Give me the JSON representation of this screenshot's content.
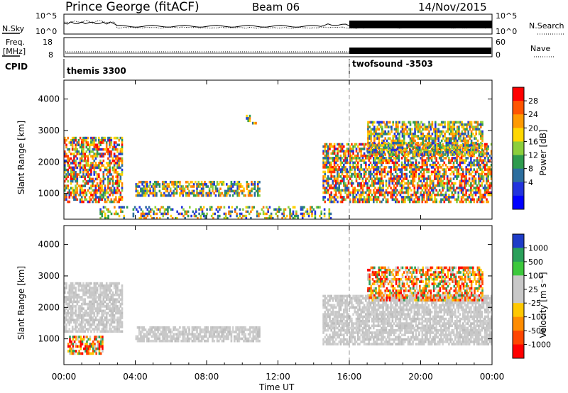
{
  "header": {
    "station": "Prince George (fitACF)",
    "beam": "Beam 06",
    "date": "14/Nov/2015"
  },
  "top_panels": {
    "nsky_label": "N.Sky",
    "nsky_ticks": [
      "10^5",
      "10^0"
    ],
    "nsearch_label": "N.Search",
    "nsearch_ticks": [
      "10^5",
      "10^0"
    ],
    "freq_label_1": "Freq.",
    "freq_label_2": "[MHz]",
    "freq_ticks": [
      "18",
      "8"
    ],
    "nave_label": "Nave",
    "nave_ticks": [
      "60",
      "0"
    ],
    "cpid_label": "CPID",
    "cpid_segments": [
      {
        "name": "themis 3300",
        "start_hour": 0,
        "end_hour": 16
      },
      {
        "name": "twofsound -3503",
        "start_hour": 16,
        "end_hour": 24
      }
    ]
  },
  "chart_data": [
    {
      "type": "heatmap",
      "panel": "power",
      "ylabel": "Slant Range [km]",
      "xlabel": "",
      "xlim": [
        0,
        24
      ],
      "ylim": [
        180,
        4600
      ],
      "yticks": [
        1000,
        2000,
        3000,
        4000
      ],
      "colorbar": {
        "label": "Power [dB]",
        "ticks": [
          "28",
          "24",
          "20",
          "16",
          "12",
          "8",
          "4"
        ],
        "colors": [
          "#ff0000",
          "#ff5500",
          "#ff9a00",
          "#ffd700",
          "#8ccf3c",
          "#2e9b4e",
          "#2c6e9e",
          "#2233dd",
          "#0000ff"
        ]
      },
      "features": [
        {
          "desc": "early echo band",
          "t_start": 0.0,
          "t_end": 3.3,
          "r_start": 700,
          "r_end": 2800,
          "level": "high"
        },
        {
          "desc": "midday band",
          "t_start": 4.0,
          "t_end": 11.0,
          "r_start": 900,
          "r_end": 1400,
          "level": "medium"
        },
        {
          "desc": "near-range ground scatter",
          "t_start": 2.0,
          "t_end": 15.0,
          "r_start": 180,
          "r_end": 600,
          "level": "low"
        },
        {
          "desc": "isolated patch",
          "t_start": 10.2,
          "t_end": 10.8,
          "r_start": 3200,
          "r_end": 3500,
          "level": "low"
        },
        {
          "desc": "evening band",
          "t_start": 14.5,
          "t_end": 24.0,
          "r_start": 700,
          "r_end": 2600,
          "level": "high"
        },
        {
          "desc": "upper band",
          "t_start": 17.0,
          "t_end": 23.5,
          "r_start": 2200,
          "r_end": 3300,
          "level": "medium"
        }
      ]
    },
    {
      "type": "heatmap",
      "panel": "velocity",
      "ylabel": "Slant Range [km]",
      "xlabel": "Time UT",
      "xlim": [
        0,
        24
      ],
      "ylim": [
        180,
        4600
      ],
      "yticks": [
        1000,
        2000,
        3000,
        4000
      ],
      "xticks": [
        "00:00",
        "04:00",
        "08:00",
        "12:00",
        "16:00",
        "20:00",
        "00:00"
      ],
      "colorbar": {
        "label": "Velocity [m s^-1]",
        "ticks": [
          "1000",
          "500",
          "100",
          "25",
          "-25",
          "-100",
          "-500",
          "-1000"
        ],
        "colors": [
          "#1e3cc8",
          "#2aa05a",
          "#3cc83c",
          "#c8c8c8",
          "#c8c8c8",
          "#ffc800",
          "#ff8c00",
          "#ff4600",
          "#ff0000"
        ]
      },
      "features": [
        {
          "desc": "ground scatter band",
          "t_start": 0.0,
          "t_end": 3.3,
          "r_start": 1200,
          "r_end": 2800,
          "level": "ground"
        },
        {
          "desc": "negative velocity patch",
          "t_start": 0.2,
          "t_end": 2.2,
          "r_start": 500,
          "r_end": 1100,
          "level": "negative"
        },
        {
          "desc": "midday ground scatter",
          "t_start": 4.0,
          "t_end": 11.0,
          "r_start": 900,
          "r_end": 1400,
          "level": "ground"
        },
        {
          "desc": "evening ground scatter",
          "t_start": 14.5,
          "t_end": 24.0,
          "r_start": 800,
          "r_end": 2400,
          "level": "ground"
        },
        {
          "desc": "upper negative band",
          "t_start": 17.0,
          "t_end": 23.5,
          "r_start": 2200,
          "r_end": 3300,
          "level": "negative"
        }
      ]
    }
  ]
}
